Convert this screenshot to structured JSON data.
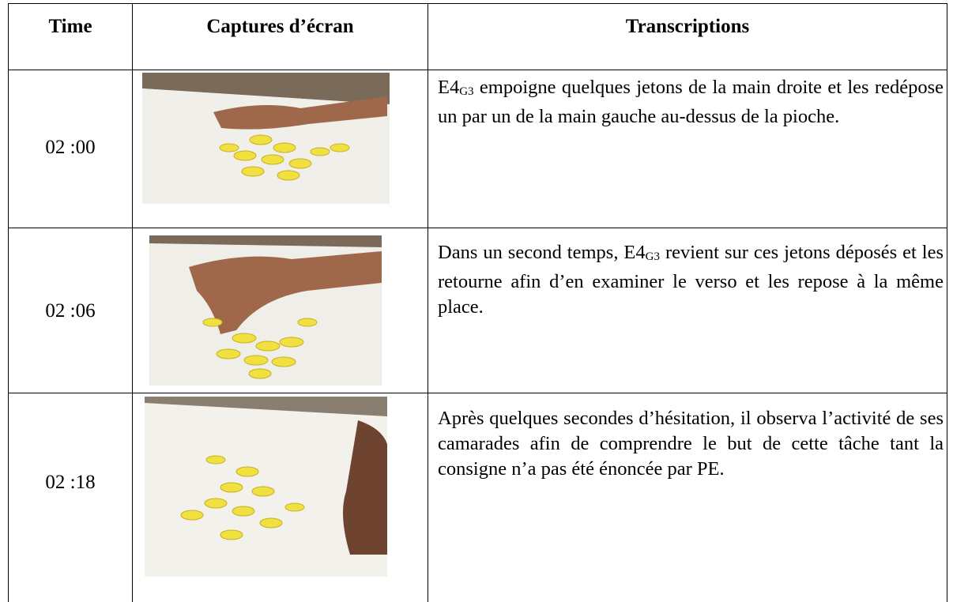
{
  "table": {
    "header": [
      "Time",
      "Captures d’écran",
      "Transcriptions"
    ],
    "rows": [
      {
        "time": "02 :00",
        "transcription": [
          {
            "text": "E4"
          },
          {
            "sub": "G3"
          },
          {
            "text": " empoigne quelques jetons de la main droite et les redépose un par un de la main gauche au-dessus de la pioche."
          }
        ]
      },
      {
        "time": "02 :06",
        "transcription": [
          {
            "text": "Dans un second temps, E4"
          },
          {
            "sub": "G3"
          },
          {
            "text": " revient sur ces jetons déposés et les retourne afin d’en examiner le verso et les repose à la même place."
          }
        ]
      },
      {
        "time": "02 :18",
        "transcription": [
          {
            "text": "Après quelques secondes d’hésitation, il observa l’activité de ses camarades afin de comprendre le but de cette tâche tant la consigne n’a pas été énoncée par PE."
          }
        ]
      }
    ]
  }
}
